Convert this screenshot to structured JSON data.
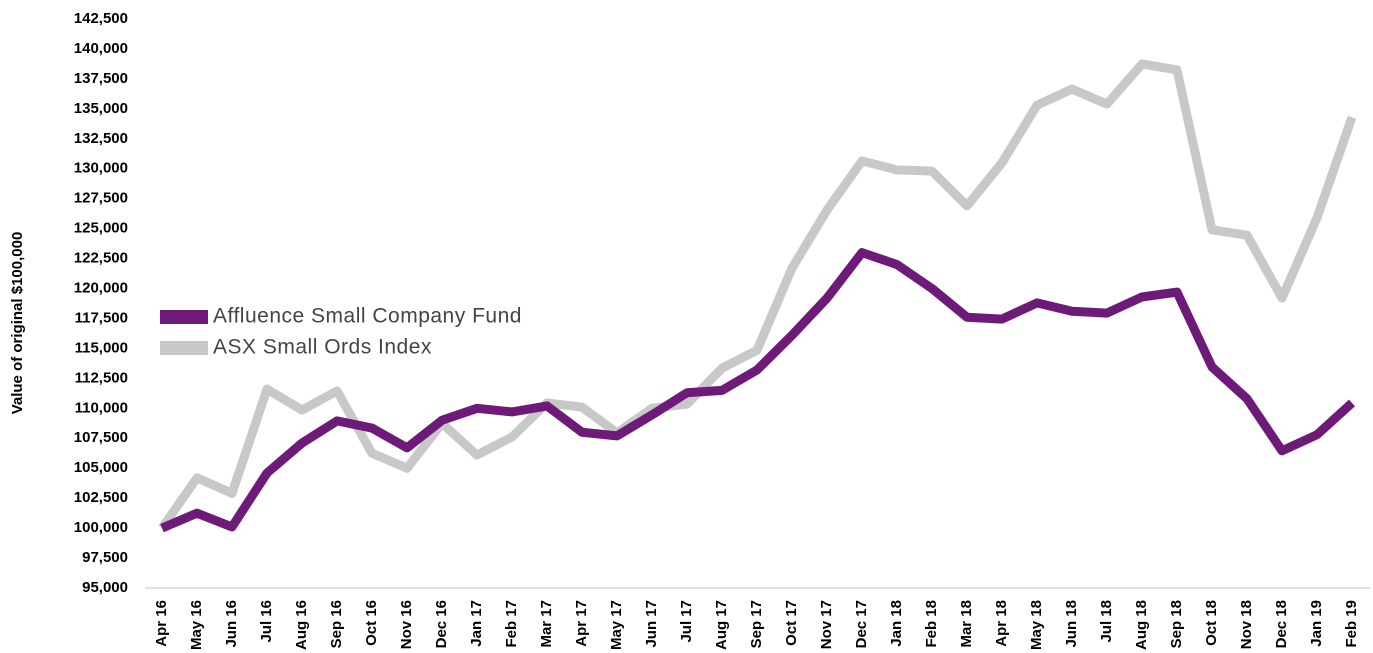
{
  "chart_data": {
    "type": "line",
    "ylabel": "Value of original $100,000",
    "categories": [
      "Apr 16",
      "May 16",
      "Jun 16",
      "Jul 16",
      "Aug 16",
      "Sep 16",
      "Oct 16",
      "Nov 16",
      "Dec 16",
      "Jan 17",
      "Feb 17",
      "Mar 17",
      "Apr 17",
      "May 17",
      "Jun 17",
      "Jul 17",
      "Aug 17",
      "Sep 17",
      "Oct 17",
      "Nov 17",
      "Dec 17",
      "Jan 18",
      "Feb 18",
      "Mar 18",
      "Apr 18",
      "May 18",
      "Jun 18",
      "Jul 18",
      "Aug 18",
      "Sep 18",
      "Oct 18",
      "Nov 18",
      "Dec 18",
      "Jan 19",
      "Feb 19"
    ],
    "series": [
      {
        "name": "Affluence Small Company Fund",
        "color": "#6d1a78",
        "values": [
          100000,
          101250,
          100100,
          104600,
          107100,
          108950,
          108350,
          106700,
          109000,
          110000,
          109700,
          110200,
          108000,
          107700,
          109450,
          111300,
          111500,
          113200,
          116100,
          119200,
          123000,
          122000,
          120000,
          117600,
          117450,
          118800,
          118100,
          117950,
          119300,
          119700,
          113450,
          110800,
          106450,
          107800,
          110450
        ]
      },
      {
        "name": "ASX Small Ords Index",
        "color": "#c8c8c8",
        "values": [
          100000,
          104200,
          102900,
          111600,
          109850,
          111450,
          106250,
          105000,
          108750,
          106100,
          107600,
          110450,
          110100,
          107950,
          110000,
          110350,
          113350,
          114850,
          121700,
          126550,
          130650,
          129900,
          129800,
          126900,
          130500,
          135300,
          136650,
          135400,
          138750,
          138250,
          124900,
          124450,
          119200,
          125900,
          134300
        ]
      }
    ],
    "ylim": [
      95000,
      142500
    ],
    "yticks": [
      {
        "value": 95000,
        "label": "95,000"
      },
      {
        "value": 97500,
        "label": "97,500"
      },
      {
        "value": 100000,
        "label": "100,000"
      },
      {
        "value": 102500,
        "label": "102,500"
      },
      {
        "value": 105000,
        "label": "105,000"
      },
      {
        "value": 107500,
        "label": "107,500"
      },
      {
        "value": 110000,
        "label": "110,000"
      },
      {
        "value": 112500,
        "label": "112,500"
      },
      {
        "value": 115000,
        "label": "115,000"
      },
      {
        "value": 117500,
        "label": "117,500"
      },
      {
        "value": 120000,
        "label": "120,000"
      },
      {
        "value": 122500,
        "label": "122,500"
      },
      {
        "value": 125000,
        "label": "125,000"
      },
      {
        "value": 127500,
        "label": "127,500"
      },
      {
        "value": 130000,
        "label": "130,000"
      },
      {
        "value": 132500,
        "label": "132,500"
      },
      {
        "value": 135000,
        "label": "135,000"
      },
      {
        "value": 137500,
        "label": "137,500"
      },
      {
        "value": 140000,
        "label": "140,000"
      },
      {
        "value": 142500,
        "label": "142,500"
      }
    ],
    "grid": false,
    "legend": "left"
  }
}
